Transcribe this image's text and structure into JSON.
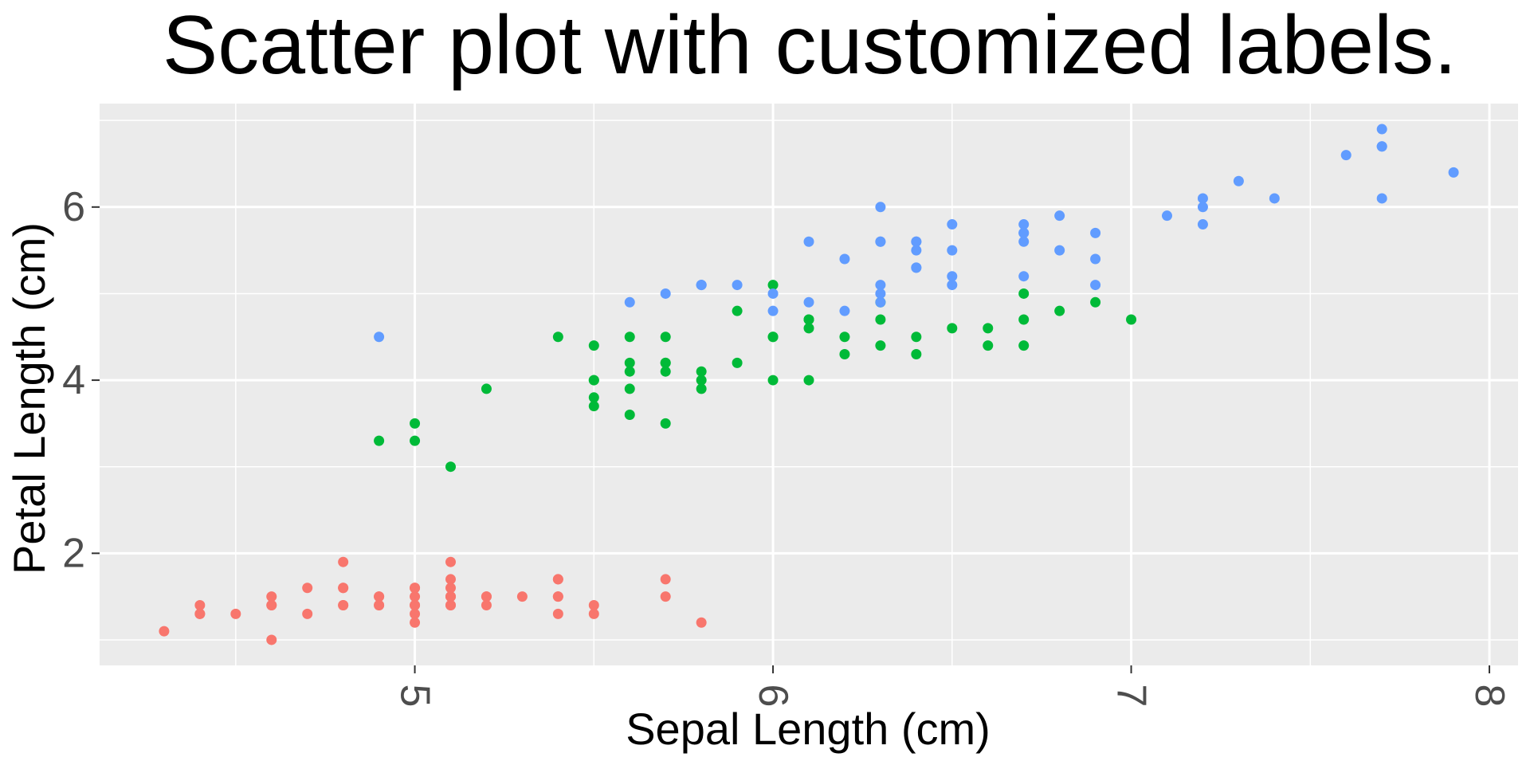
{
  "chart_data": {
    "type": "scatter",
    "title": "Scatter plot with customized labels.",
    "xlabel": "Sepal Length (cm)",
    "ylabel": "Petal Length (cm)",
    "xlim": [
      4.12,
      8.08
    ],
    "ylim": [
      0.705,
      7.195
    ],
    "x_ticks": [
      5,
      6,
      7,
      8
    ],
    "x_tick_labels": [
      "5",
      "6",
      "7",
      "8"
    ],
    "x_minor_ticks": [
      4.5,
      5.5,
      6.5,
      7.5
    ],
    "y_ticks": [
      2,
      4,
      6
    ],
    "y_tick_labels": [
      "2",
      "4",
      "6"
    ],
    "y_minor_ticks": [
      1,
      3,
      5,
      7
    ],
    "x_tick_label_rotation_deg": 90,
    "grid": true,
    "legend": false,
    "panel_background": "#ebebeb",
    "grid_color": "#ffffff",
    "series": [
      {
        "color": "#f8766d",
        "points": [
          [
            5.1,
            1.4
          ],
          [
            4.9,
            1.4
          ],
          [
            4.7,
            1.3
          ],
          [
            4.6,
            1.5
          ],
          [
            5.0,
            1.4
          ],
          [
            5.4,
            1.7
          ],
          [
            4.6,
            1.4
          ],
          [
            5.0,
            1.5
          ],
          [
            4.4,
            1.4
          ],
          [
            4.9,
            1.5
          ],
          [
            5.4,
            1.5
          ],
          [
            4.8,
            1.6
          ],
          [
            4.8,
            1.4
          ],
          [
            4.3,
            1.1
          ],
          [
            5.8,
            1.2
          ],
          [
            5.7,
            1.5
          ],
          [
            5.4,
            1.3
          ],
          [
            5.1,
            1.4
          ],
          [
            5.7,
            1.7
          ],
          [
            5.1,
            1.5
          ],
          [
            5.4,
            1.7
          ],
          [
            5.1,
            1.5
          ],
          [
            4.6,
            1.0
          ],
          [
            5.1,
            1.7
          ],
          [
            4.8,
            1.9
          ],
          [
            5.0,
            1.6
          ],
          [
            5.0,
            1.6
          ],
          [
            5.2,
            1.5
          ],
          [
            5.2,
            1.4
          ],
          [
            4.7,
            1.6
          ],
          [
            4.8,
            1.6
          ],
          [
            5.4,
            1.5
          ],
          [
            5.2,
            1.5
          ],
          [
            5.5,
            1.4
          ],
          [
            4.9,
            1.5
          ],
          [
            5.0,
            1.2
          ],
          [
            5.5,
            1.3
          ],
          [
            4.9,
            1.4
          ],
          [
            4.4,
            1.3
          ],
          [
            5.1,
            1.5
          ],
          [
            5.0,
            1.3
          ],
          [
            4.5,
            1.3
          ],
          [
            4.4,
            1.3
          ],
          [
            5.0,
            1.6
          ],
          [
            5.1,
            1.9
          ],
          [
            4.8,
            1.4
          ],
          [
            5.1,
            1.6
          ],
          [
            4.6,
            1.4
          ],
          [
            5.3,
            1.5
          ],
          [
            5.0,
            1.4
          ]
        ]
      },
      {
        "color": "#00ba38",
        "points": [
          [
            7.0,
            4.7
          ],
          [
            6.4,
            4.5
          ],
          [
            6.9,
            4.9
          ],
          [
            5.5,
            4.0
          ],
          [
            6.5,
            4.6
          ],
          [
            5.7,
            4.5
          ],
          [
            6.3,
            4.7
          ],
          [
            4.9,
            3.3
          ],
          [
            6.6,
            4.6
          ],
          [
            5.2,
            3.9
          ],
          [
            5.0,
            3.5
          ],
          [
            5.9,
            4.2
          ],
          [
            6.0,
            4.0
          ],
          [
            6.1,
            4.7
          ],
          [
            5.6,
            3.6
          ],
          [
            6.7,
            4.4
          ],
          [
            5.6,
            4.5
          ],
          [
            5.8,
            4.1
          ],
          [
            6.2,
            4.5
          ],
          [
            5.6,
            3.9
          ],
          [
            5.9,
            4.8
          ],
          [
            6.1,
            4.0
          ],
          [
            6.3,
            4.9
          ],
          [
            6.1,
            4.7
          ],
          [
            6.4,
            4.3
          ],
          [
            6.6,
            4.4
          ],
          [
            6.8,
            4.8
          ],
          [
            6.7,
            5.0
          ],
          [
            6.0,
            4.5
          ],
          [
            5.7,
            3.5
          ],
          [
            5.5,
            3.8
          ],
          [
            5.5,
            3.7
          ],
          [
            5.8,
            3.9
          ],
          [
            6.0,
            5.1
          ],
          [
            5.4,
            4.5
          ],
          [
            6.0,
            4.5
          ],
          [
            6.7,
            4.7
          ],
          [
            6.3,
            4.4
          ],
          [
            5.6,
            4.1
          ],
          [
            5.5,
            4.0
          ],
          [
            5.5,
            4.4
          ],
          [
            6.1,
            4.6
          ],
          [
            5.8,
            4.0
          ],
          [
            5.0,
            3.3
          ],
          [
            5.6,
            4.2
          ],
          [
            5.7,
            4.2
          ],
          [
            5.7,
            4.2
          ],
          [
            6.2,
            4.3
          ],
          [
            5.1,
            3.0
          ],
          [
            5.7,
            4.1
          ]
        ]
      },
      {
        "color": "#619cff",
        "points": [
          [
            6.3,
            6.0
          ],
          [
            5.8,
            5.1
          ],
          [
            7.1,
            5.9
          ],
          [
            6.3,
            5.6
          ],
          [
            6.5,
            5.8
          ],
          [
            7.6,
            6.6
          ],
          [
            4.9,
            4.5
          ],
          [
            7.3,
            6.3
          ],
          [
            6.7,
            5.8
          ],
          [
            7.2,
            6.1
          ],
          [
            6.5,
            5.1
          ],
          [
            6.4,
            5.3
          ],
          [
            6.8,
            5.5
          ],
          [
            5.7,
            5.0
          ],
          [
            5.8,
            5.1
          ],
          [
            6.4,
            5.3
          ],
          [
            6.5,
            5.5
          ],
          [
            7.7,
            6.7
          ],
          [
            7.7,
            6.9
          ],
          [
            6.0,
            5.0
          ],
          [
            6.9,
            5.7
          ],
          [
            5.6,
            4.9
          ],
          [
            7.7,
            6.7
          ],
          [
            6.3,
            4.9
          ],
          [
            6.7,
            5.7
          ],
          [
            7.2,
            6.0
          ],
          [
            6.2,
            4.8
          ],
          [
            6.1,
            4.9
          ],
          [
            6.4,
            5.6
          ],
          [
            7.2,
            5.8
          ],
          [
            7.4,
            6.1
          ],
          [
            7.9,
            6.4
          ],
          [
            6.4,
            5.6
          ],
          [
            6.3,
            5.1
          ],
          [
            6.1,
            5.6
          ],
          [
            7.7,
            6.1
          ],
          [
            6.3,
            5.6
          ],
          [
            6.4,
            5.5
          ],
          [
            6.0,
            4.8
          ],
          [
            6.9,
            5.4
          ],
          [
            6.7,
            5.6
          ],
          [
            6.9,
            5.1
          ],
          [
            5.8,
            5.1
          ],
          [
            6.8,
            5.9
          ],
          [
            6.7,
            5.7
          ],
          [
            6.7,
            5.2
          ],
          [
            6.3,
            5.0
          ],
          [
            6.5,
            5.2
          ],
          [
            6.2,
            5.4
          ],
          [
            5.9,
            5.1
          ]
        ]
      }
    ]
  }
}
